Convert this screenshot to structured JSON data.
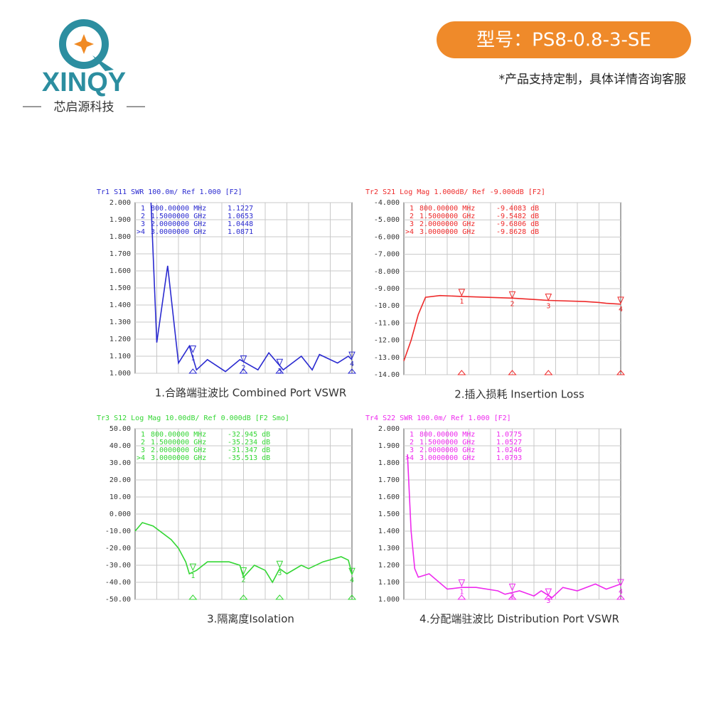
{
  "header": {
    "logo": "XINQY",
    "brand": "芯启源科技",
    "model": "型号：PS8-0.8-3-SE",
    "note": "*产品支持定制，具体详情咨询客服"
  },
  "chart_data": [
    {
      "type": "line",
      "title": "Tr1 S11 SWR 100.0m/ Ref 1.000 [F2]",
      "caption": "1.合路端驻波比 Combined Port VSWR",
      "color": "#2a2ad0",
      "x": [
        0.22,
        0.3,
        0.45,
        0.6,
        0.75,
        0.85,
        1.0,
        1.25,
        1.45,
        1.7,
        1.85,
        2.05,
        2.3,
        2.45,
        2.55,
        2.8,
        2.95,
        3.0
      ],
      "values": [
        2.0,
        1.18,
        1.63,
        1.06,
        1.16,
        1.02,
        1.08,
        1.01,
        1.08,
        1.02,
        1.12,
        1.02,
        1.1,
        1.02,
        1.11,
        1.06,
        1.1,
        1.08
      ],
      "xlim": [
        0,
        3
      ],
      "ylim": [
        1,
        2
      ],
      "yticks": [
        {
          "value": 2,
          "label": "2.000"
        },
        {
          "value": 1.9,
          "label": "1.900"
        },
        {
          "value": 1.8,
          "label": "1.800"
        },
        {
          "value": 1.7,
          "label": "1.700"
        },
        {
          "value": 1.6,
          "label": "1.600"
        },
        {
          "value": 1.5,
          "label": "1.500"
        },
        {
          "value": 1.4,
          "label": "1.400"
        },
        {
          "value": 1.3,
          "label": "1.300"
        },
        {
          "value": 1.2,
          "label": "1.200"
        },
        {
          "value": 1.1,
          "label": "1.100"
        },
        {
          "value": 1,
          "label": "1.000"
        }
      ],
      "markers": [
        {
          "id": "1",
          "tag": "1",
          "x": 0.8,
          "x_label": "800.00000 MHz",
          "value": 1.1227,
          "value_label": "1.1227"
        },
        {
          "id": "2",
          "tag": "2",
          "x": 1.5,
          "x_label": "1.5000000 GHz",
          "value": 1.0653,
          "value_label": "1.0653"
        },
        {
          "id": "3",
          "tag": "3",
          "x": 2.0,
          "x_label": "2.0000000 GHz",
          "value": 1.0448,
          "value_label": "1.0448"
        },
        {
          "id": ">4",
          "tag": "4",
          "x": 3.0,
          "x_label": "3.0000000 GHz",
          "value": 1.0871,
          "value_label": "1.0871"
        }
      ]
    },
    {
      "type": "line",
      "title": "Tr2 S21 Log Mag 1.000dB/ Ref -9.000dB [F2]",
      "caption": "2.插入损耗 Insertion Loss",
      "color": "#ee2a2a",
      "x": [
        0,
        0.1,
        0.2,
        0.3,
        0.5,
        0.8,
        1.5,
        2.0,
        2.5,
        2.7,
        2.8,
        3.0
      ],
      "values": [
        -13.2,
        -12.0,
        -10.5,
        -9.5,
        -9.4,
        -9.45,
        -9.55,
        -9.68,
        -9.75,
        -9.8,
        -9.85,
        -9.9
      ],
      "xlim": [
        0,
        3
      ],
      "ylim": [
        -14,
        -4
      ],
      "yticks": [
        {
          "value": -4,
          "label": "-4.000"
        },
        {
          "value": -5,
          "label": "-5.000"
        },
        {
          "value": -6,
          "label": "-6.000"
        },
        {
          "value": -7,
          "label": "-7.000"
        },
        {
          "value": -8,
          "label": "-8.000"
        },
        {
          "value": -9,
          "label": "-9.000"
        },
        {
          "value": -10,
          "label": "-10.00"
        },
        {
          "value": -11,
          "label": "-11.00"
        },
        {
          "value": -12,
          "label": "-12.00"
        },
        {
          "value": -13,
          "label": "-13.00"
        },
        {
          "value": -14,
          "label": "-14.00"
        }
      ],
      "markers": [
        {
          "id": "1",
          "tag": "1",
          "x": 0.8,
          "x_label": "800.00000 MHz",
          "value": -9.4083,
          "value_label": "-9.4083 dB"
        },
        {
          "id": "2",
          "tag": "2",
          "x": 1.5,
          "x_label": "1.5000000 GHz",
          "value": -9.5482,
          "value_label": "-9.5482 dB"
        },
        {
          "id": "3",
          "tag": "3",
          "x": 2.0,
          "x_label": "2.0000000 GHz",
          "value": -9.6806,
          "value_label": "-9.6806 dB"
        },
        {
          "id": ">4",
          "tag": "4",
          "x": 3.0,
          "x_label": "3.0000000 GHz",
          "value": -9.8628,
          "value_label": "-9.8628 dB"
        }
      ]
    },
    {
      "type": "line",
      "title": "Tr3 S12 Log Mag 10.00dB/ Ref 0.000dB [F2 Smo]",
      "caption": "3.隔离度Isolation",
      "color": "#33d633",
      "x": [
        0,
        0.1,
        0.25,
        0.5,
        0.6,
        0.7,
        0.75,
        0.85,
        1.0,
        1.3,
        1.45,
        1.5,
        1.65,
        1.8,
        1.9,
        2.0,
        2.1,
        2.3,
        2.4,
        2.6,
        2.85,
        2.95,
        3.0
      ],
      "values": [
        -10,
        -5,
        -7,
        -15,
        -20,
        -28,
        -35,
        -33,
        -28,
        -28,
        -30,
        -37,
        -30,
        -33,
        -40,
        -32,
        -35,
        -30,
        -32,
        -28,
        -25,
        -27,
        -35
      ],
      "xlim": [
        0,
        3
      ],
      "ylim": [
        -50,
        50
      ],
      "yticks": [
        {
          "value": 50,
          "label": "50.00"
        },
        {
          "value": 40,
          "label": "40.00"
        },
        {
          "value": 30,
          "label": "30.00"
        },
        {
          "value": 20,
          "label": "20.00"
        },
        {
          "value": 10,
          "label": "10.00"
        },
        {
          "value": 0,
          "label": "0.000"
        },
        {
          "value": -10,
          "label": "-10.00"
        },
        {
          "value": -20,
          "label": "-20.00"
        },
        {
          "value": -30,
          "label": "-30.00"
        },
        {
          "value": -40,
          "label": "-40.00"
        },
        {
          "value": -50,
          "label": "-50.00"
        }
      ],
      "markers": [
        {
          "id": "1",
          "tag": "1",
          "x": 0.8,
          "x_label": "800.00000 MHz",
          "value": -32.945,
          "value_label": "-32.945 dB"
        },
        {
          "id": "2",
          "tag": "2",
          "x": 1.5,
          "x_label": "1.5000000 GHz",
          "value": -35.234,
          "value_label": "-35.234 dB"
        },
        {
          "id": "3",
          "tag": "3",
          "x": 2.0,
          "x_label": "2.0000000 GHz",
          "value": -31.347,
          "value_label": "-31.347 dB"
        },
        {
          "id": ">4",
          "tag": "4",
          "x": 3.0,
          "x_label": "3.0000000 GHz",
          "value": -35.513,
          "value_label": "-35.513 dB"
        }
      ]
    },
    {
      "type": "line",
      "title": "Tr4 S22 SWR 100.0m/ Ref 1.000 [F2]",
      "caption": "4.分配端驻波比 Distribution  Port VSWR",
      "color": "#ee2aee",
      "x": [
        0.05,
        0.1,
        0.15,
        0.2,
        0.35,
        0.6,
        0.8,
        1.0,
        1.3,
        1.4,
        1.6,
        1.8,
        1.9,
        2.05,
        2.2,
        2.4,
        2.65,
        2.8,
        3.0
      ],
      "values": [
        1.85,
        1.4,
        1.18,
        1.13,
        1.15,
        1.06,
        1.07,
        1.07,
        1.05,
        1.03,
        1.05,
        1.02,
        1.05,
        1.01,
        1.07,
        1.05,
        1.09,
        1.06,
        1.09
      ],
      "xlim": [
        0,
        3
      ],
      "ylim": [
        1,
        2
      ],
      "yticks": [
        {
          "value": 2,
          "label": "2.000"
        },
        {
          "value": 1.9,
          "label": "1.900"
        },
        {
          "value": 1.8,
          "label": "1.800"
        },
        {
          "value": 1.7,
          "label": "1.700"
        },
        {
          "value": 1.6,
          "label": "1.600"
        },
        {
          "value": 1.5,
          "label": "1.500"
        },
        {
          "value": 1.4,
          "label": "1.400"
        },
        {
          "value": 1.3,
          "label": "1.300"
        },
        {
          "value": 1.2,
          "label": "1.200"
        },
        {
          "value": 1.1,
          "label": "1.100"
        },
        {
          "value": 1,
          "label": "1.000"
        }
      ],
      "markers": [
        {
          "id": "1",
          "tag": "1",
          "x": 0.8,
          "x_label": "800.00000 MHz",
          "value": 1.0775,
          "value_label": "1.0775"
        },
        {
          "id": "2",
          "tag": "2",
          "x": 1.5,
          "x_label": "1.5000000 GHz",
          "value": 1.0527,
          "value_label": "1.0527"
        },
        {
          "id": "3",
          "tag": "3",
          "x": 2.0,
          "x_label": "2.0000000 GHz",
          "value": 1.0246,
          "value_label": "1.0246"
        },
        {
          "id": ">4",
          "tag": "4",
          "x": 3.0,
          "x_label": "3.0000000 GHz",
          "value": 1.0793,
          "value_label": "1.0793"
        }
      ]
    }
  ]
}
